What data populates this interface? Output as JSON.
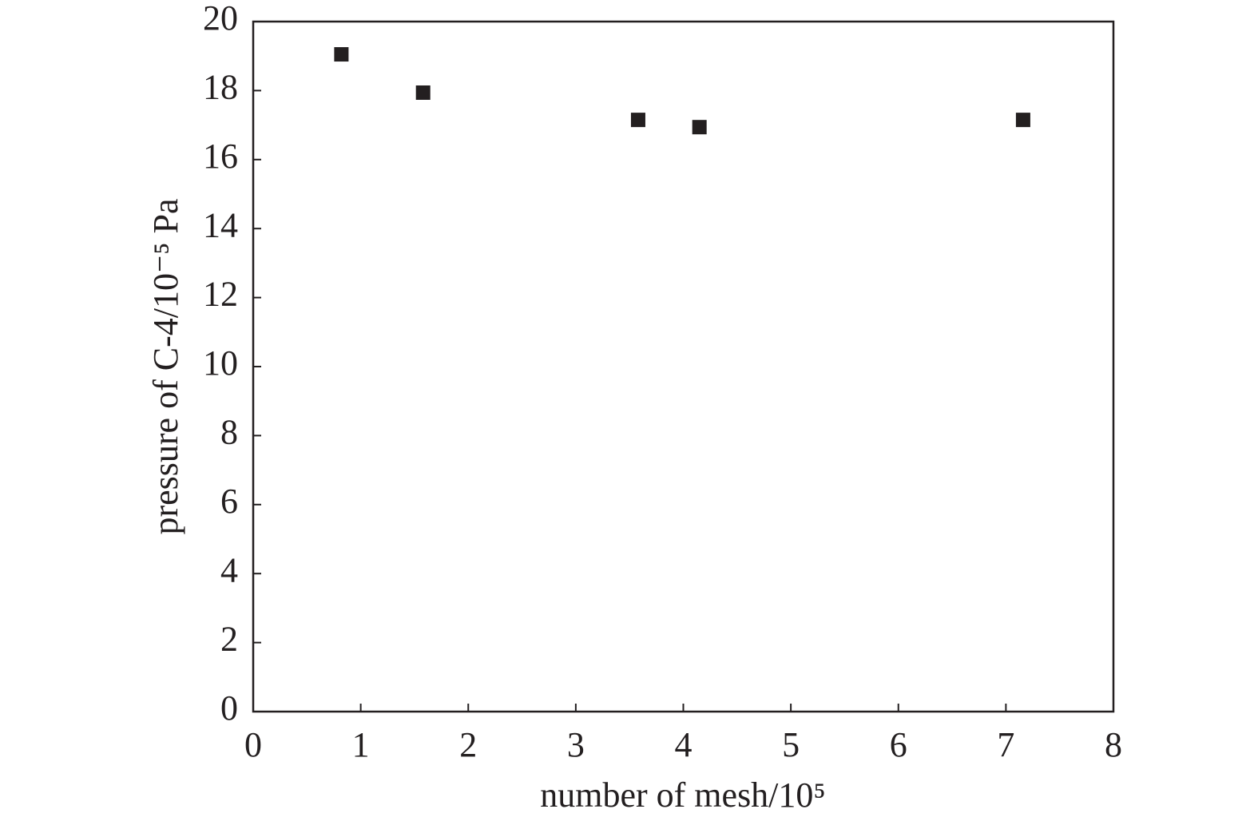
{
  "chart_data": {
    "type": "scatter",
    "xlabel": "number of mesh/10⁵",
    "ylabel": "pressure of C-4/10⁻⁵ Pa",
    "x": [
      0.82,
      1.58,
      3.58,
      4.15,
      7.16
    ],
    "values": [
      19.05,
      17.94,
      17.15,
      16.94,
      17.15
    ],
    "color": "#231f20",
    "xlim": [
      0,
      8
    ],
    "xticks": [
      0,
      1,
      2,
      3,
      4,
      5,
      6,
      7,
      8
    ],
    "ylim": [
      0,
      20
    ],
    "yticks": [
      0,
      2,
      4,
      6,
      8,
      10,
      12,
      14,
      16,
      18,
      20
    ]
  }
}
